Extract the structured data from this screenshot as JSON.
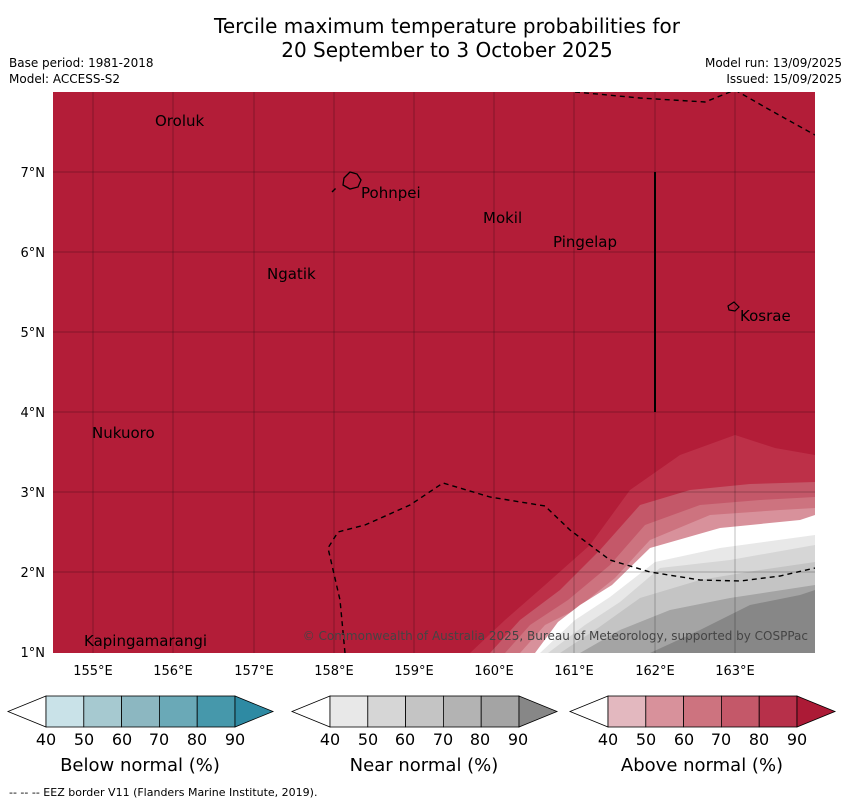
{
  "title_line1": "Tercile maximum temperature probabilities for",
  "title_line2": "20 September to 3 October 2025",
  "meta_left": {
    "base_period": "Base period: 1981-2018",
    "model": "Model: ACCESS-S2"
  },
  "meta_right": {
    "model_run": "Model run: 13/09/2025",
    "issued": "Issued: 15/09/2025"
  },
  "axes": {
    "x_ticks": [
      "155°E",
      "156°E",
      "157°E",
      "158°E",
      "159°E",
      "160°E",
      "161°E",
      "162°E",
      "163°E"
    ],
    "y_ticks": [
      "7°N",
      "6°N",
      "5°N",
      "4°N",
      "3°N",
      "2°N",
      "1°N"
    ]
  },
  "places": [
    {
      "name": "Oroluk"
    },
    {
      "name": "Pohnpei"
    },
    {
      "name": "Mokil"
    },
    {
      "name": "Pingelap"
    },
    {
      "name": "Ngatik"
    },
    {
      "name": "Kosrae"
    },
    {
      "name": "Nukuoro"
    },
    {
      "name": "Kapingamarangi"
    }
  ],
  "credit": "© Commonwealth of Australia 2025, Bureau of Meteorology, supported by COSPPac",
  "colorbars": [
    {
      "title": "Below normal (%)",
      "labels": [
        "40",
        "50",
        "60",
        "70",
        "80",
        "90"
      ],
      "colors": [
        "#c9e2e8",
        "#a6c9d0",
        "#8cb7c1",
        "#6aa9b7",
        "#4698ab",
        "#2e8aa3"
      ]
    },
    {
      "title": "Near normal (%)",
      "labels": [
        "40",
        "50",
        "60",
        "70",
        "80",
        "90"
      ],
      "colors": [
        "#e8e8e8",
        "#d6d6d6",
        "#c4c4c4",
        "#b3b3b3",
        "#a4a4a4",
        "#878787"
      ]
    },
    {
      "title": "Above normal (%)",
      "labels": [
        "40",
        "50",
        "60",
        "70",
        "80",
        "90"
      ],
      "colors": [
        "#e3b8bf",
        "#d8919b",
        "#cd737f",
        "#c45869",
        "#b7304a",
        "#ac1a36"
      ]
    }
  ],
  "footer": "--  --  -- EEZ border V11 (Flanders Marine Institute, 2019).",
  "map_colors": {
    "above_90": "#b31d38",
    "above_80": "#bd3048",
    "above_70": "#c45869",
    "above_60": "#cd737f",
    "above_50": "#d8919b",
    "near": "#c4c4c4"
  }
}
